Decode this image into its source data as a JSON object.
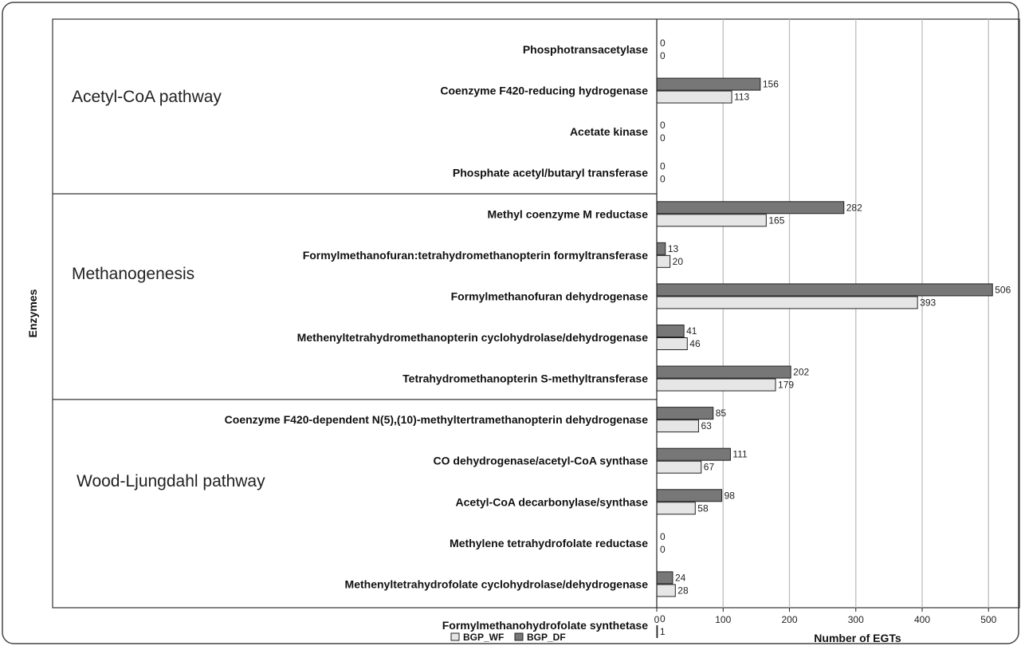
{
  "chart_data": {
    "type": "bar",
    "orientation": "horizontal",
    "ylabel": "Enzymes",
    "xlabel": "Number of EGTs",
    "xlim": [
      0,
      550
    ],
    "xticks": [
      "0",
      "100",
      "200",
      "300",
      "400",
      "500"
    ],
    "grid": true,
    "legend_position": "bottom",
    "categories": [
      "Phosphotransacetylase",
      "Coenzyme F420-reducing hydrogenase",
      "Acetate kinase",
      "Phosphate acetyl/butaryl transferase",
      "Methyl coenzyme M reductase",
      "Formylmethanofuran:tetrahydromethanopterin formyltransferase",
      "Formylmethanofuran dehydrogenase",
      "Methenyltetrahydromethanopterin cyclohydrolase/dehydrogenase",
      "Tetrahydromethanopterin S-methyltransferase",
      "Coenzyme F420-dependent N(5),(10)-methyltertramethanopterin dehydrogenase",
      "CO dehydrogenase/acetyl-CoA synthase",
      "Acetyl-CoA decarbonylase/synthase",
      "Methylene tetrahydrofolate reductase",
      "Methenyltetrahydrofolate cyclohydrolase/dehydrogenase",
      "Formylmethanohydrofolate synthetase"
    ],
    "series": [
      {
        "name": "BGP_DF",
        "color": "#777777",
        "values": [
          0,
          156,
          0,
          0,
          282,
          13,
          506,
          41,
          202,
          85,
          111,
          98,
          0,
          24,
          0
        ]
      },
      {
        "name": "BGP_WF",
        "color": "#e6e6e6",
        "values": [
          0,
          113,
          0,
          0,
          165,
          20,
          393,
          46,
          179,
          63,
          67,
          58,
          0,
          28,
          1
        ]
      }
    ],
    "groups": [
      {
        "label": "Acetyl-CoA pathway",
        "count": 4
      },
      {
        "label": "Methanogenesis",
        "count": 5
      },
      {
        "label": "Wood-Ljungdahl pathway",
        "count": 6
      }
    ],
    "legend": [
      {
        "label": "BGP_WF",
        "color": "#e6e6e6"
      },
      {
        "label": "BGP_DF",
        "color": "#777777"
      }
    ]
  }
}
